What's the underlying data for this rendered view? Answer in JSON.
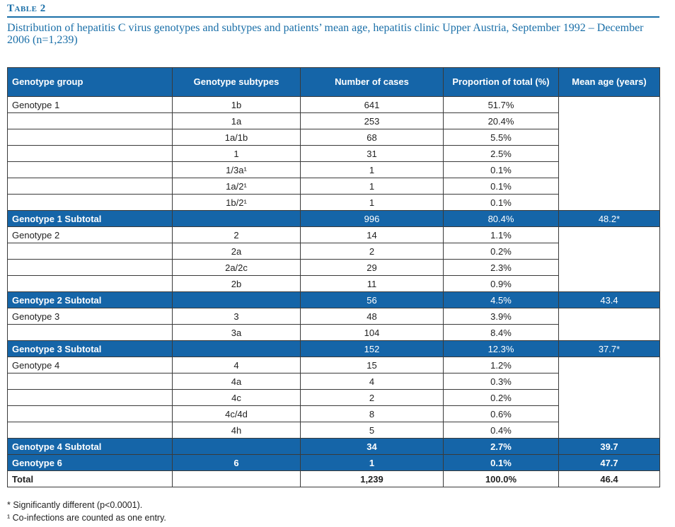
{
  "table_label": "Table 2",
  "caption": "Distribution of hepatitis C virus genotypes and subtypes and patients’ mean age, hepatitis clinic Upper Austria, September 1992 – December 2006 (n=1,239)",
  "headers": [
    "Genotype group",
    "Genotype subtypes",
    "Number of cases",
    "Proportion of total (%)",
    "Mean age (years)"
  ],
  "rows": [
    {
      "group": "Genotype 1",
      "subtype": "1b",
      "cases": "641",
      "prop": "51.7%",
      "age": ""
    },
    {
      "group": "",
      "subtype": "1a",
      "cases": "253",
      "prop": "20.4%",
      "age": ""
    },
    {
      "group": "",
      "subtype": "1a/1b",
      "cases": "68",
      "prop": "5.5%",
      "age": ""
    },
    {
      "group": "",
      "subtype": "1",
      "cases": "31",
      "prop": "2.5%",
      "age": ""
    },
    {
      "group": "",
      "subtype": "1/3a¹",
      "cases": "1",
      "prop": "0.1%",
      "age": ""
    },
    {
      "group": "",
      "subtype": "1a/2¹",
      "cases": "1",
      "prop": "0.1%",
      "age": ""
    },
    {
      "group": "",
      "subtype": "1b/2¹",
      "cases": "1",
      "prop": "0.1%",
      "age": ""
    },
    {
      "group": "Genotype 1 Subtotal",
      "subtype": "",
      "cases": "996",
      "prop": "80.4%",
      "age": "48.2*"
    },
    {
      "group": "Genotype 2",
      "subtype": "2",
      "cases": "14",
      "prop": "1.1%",
      "age": ""
    },
    {
      "group": "",
      "subtype": "2a",
      "cases": "2",
      "prop": "0.2%",
      "age": ""
    },
    {
      "group": "",
      "subtype": "2a/2c",
      "cases": "29",
      "prop": "2.3%",
      "age": ""
    },
    {
      "group": "",
      "subtype": "2b",
      "cases": "11",
      "prop": "0.9%",
      "age": ""
    },
    {
      "group": "Genotype 2 Subtotal",
      "subtype": "",
      "cases": "56",
      "prop": "4.5%",
      "age": "43.4"
    },
    {
      "group": "Genotype 3",
      "subtype": "3",
      "cases": "48",
      "prop": "3.9%",
      "age": ""
    },
    {
      "group": "",
      "subtype": "3a",
      "cases": "104",
      "prop": "8.4%",
      "age": ""
    },
    {
      "group": "Genotype 3 Subtotal",
      "subtype": "",
      "cases": "152",
      "prop": "12.3%",
      "age": "37.7*"
    },
    {
      "group": "Genotype 4",
      "subtype": "4",
      "cases": "15",
      "prop": "1.2%",
      "age": ""
    },
    {
      "group": "",
      "subtype": "4a",
      "cases": "4",
      "prop": "0.3%",
      "age": ""
    },
    {
      "group": "",
      "subtype": "4c",
      "cases": "2",
      "prop": "0.2%",
      "age": ""
    },
    {
      "group": "",
      "subtype": "4c/4d",
      "cases": "8",
      "prop": "0.6%",
      "age": ""
    },
    {
      "group": "",
      "subtype": "4h",
      "cases": "5",
      "prop": "0.4%",
      "age": ""
    },
    {
      "group": "Genotype 4 Subtotal",
      "subtype": "",
      "cases": "34",
      "prop": "2.7%",
      "age": "39.7"
    },
    {
      "group": "Genotype 6",
      "subtype": "6",
      "cases": "1",
      "prop": "0.1%",
      "age": "47.7"
    },
    {
      "group": "Total",
      "subtype": "",
      "cases": "1,239",
      "prop": "100.0%",
      "age": "46.4"
    }
  ],
  "row_styles": [
    "d",
    "d",
    "d",
    "d",
    "d",
    "d",
    "d",
    "sub",
    "d",
    "d",
    "d",
    "d",
    "sub",
    "d",
    "d",
    "sub",
    "d",
    "d",
    "d",
    "d",
    "d",
    "subb",
    "subb",
    "total"
  ],
  "footnotes": [
    "* Significantly different (p<0.0001).",
    "¹ Co-infections are counted as one entry."
  ],
  "colors": {
    "accent": "#1565a8",
    "heading": "#1a6fa8"
  }
}
